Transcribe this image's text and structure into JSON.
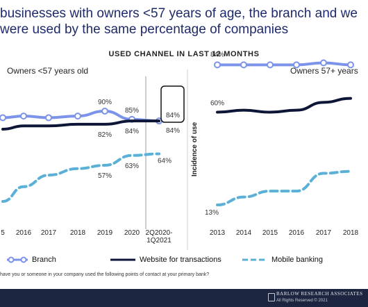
{
  "headline": {
    "line1": "businesses with owners <57 years of age, the branch and we",
    "line2": "were used by the same percentage of companies"
  },
  "chart_data": {
    "type": "line",
    "title": "USED CHANNEL IN LAST 12 MONTHS",
    "legend_position": "bottom",
    "grid": false,
    "colors": {
      "Branch": "#7b93e8",
      "Website for transactions": "#0e1638",
      "Mobile banking": "#5ab0d6"
    },
    "panels": [
      {
        "name": "Owners <57 years old",
        "categories": [
          "5",
          "2016",
          "2017",
          "2018",
          "2019",
          "2020",
          "2Q2020-\n1Q2021"
        ],
        "series": [
          {
            "name": "Branch",
            "values": [
              86,
              87,
              86,
              87,
              90,
              85,
              84
            ]
          },
          {
            "name": "Website for transactions",
            "values": [
              79,
              81,
              81,
              82,
              82,
              84,
              84
            ]
          },
          {
            "name": "Mobile banking",
            "values": [
              35,
              44,
              51,
              55,
              57,
              63,
              64
            ]
          }
        ],
        "data_labels": [
          {
            "series": "Branch",
            "category": "2019",
            "text": "90%"
          },
          {
            "series": "Branch",
            "category": "2020",
            "text": "85%"
          },
          {
            "series": "Branch",
            "category": "2Q2020-\n1Q2021",
            "text": "84%"
          },
          {
            "series": "Website for transactions",
            "category": "2019",
            "text": "82%"
          },
          {
            "series": "Website for transactions",
            "category": "2020",
            "text": "84%"
          },
          {
            "series": "Website for transactions",
            "category": "2Q2020-\n1Q2021",
            "text": "84%"
          },
          {
            "series": "Mobile banking",
            "category": "2019",
            "text": "57%"
          },
          {
            "series": "Mobile banking",
            "category": "2020",
            "text": "63%"
          },
          {
            "series": "Mobile banking",
            "category": "2Q2020-\n1Q2021",
            "text": "64%"
          }
        ]
      },
      {
        "name": "Owners 57+ years",
        "ylabel": "Incidence of use",
        "categories": [
          "2013",
          "2014",
          "2015",
          "2016",
          "2017",
          "2018"
        ],
        "series": [
          {
            "name": "Branch",
            "values": [
              84,
              84,
              84,
              84,
              85,
              84
            ]
          },
          {
            "name": "Website for transactions",
            "values": [
              60,
              61,
              60,
              61,
              65,
              67
            ]
          },
          {
            "name": "Mobile banking",
            "values": [
              13,
              17,
              20,
              20,
              29,
              30
            ]
          }
        ],
        "data_labels": [
          {
            "series": "Branch",
            "category": "2013",
            "text": "84%"
          },
          {
            "series": "Website for transactions",
            "category": "2013",
            "text": "60%"
          },
          {
            "series": "Mobile banking",
            "category": "2013",
            "text": "13%"
          }
        ]
      }
    ]
  },
  "footnote": "have you or someone in your company used the following points of contact at your primary bank?",
  "footer": {
    "logo_text": "BARLOW RESEARCH ASSOCIATES",
    "rights": "All Rights Reserved © 2021"
  }
}
